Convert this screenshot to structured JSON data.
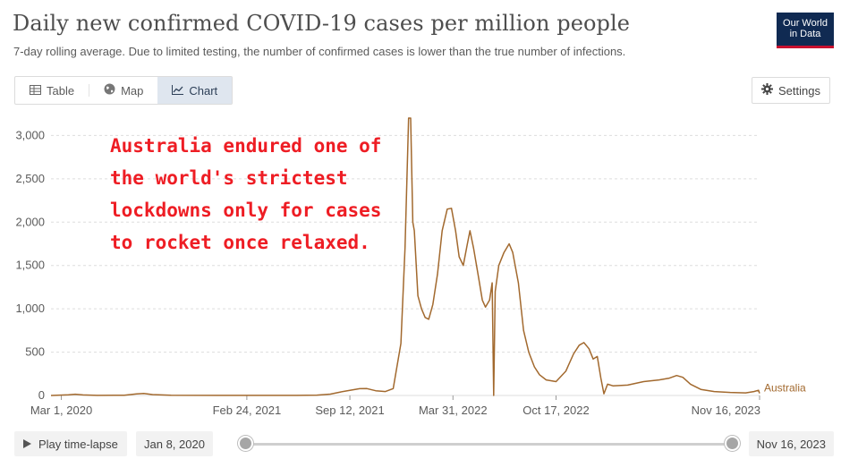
{
  "header": {
    "title": "Daily new confirmed COVID-19 cases per million people",
    "subtitle": "7-day rolling average. Due to limited testing, the number of confirmed cases is lower than the true number of infections.",
    "logo_line1": "Our World",
    "logo_line2": "in Data"
  },
  "tabs": [
    {
      "label": "Table",
      "icon": "table-icon",
      "active": false
    },
    {
      "label": "Map",
      "icon": "globe-icon",
      "active": false
    },
    {
      "label": "Chart",
      "icon": "line-chart-icon",
      "active": true
    }
  ],
  "settings_label": "Settings",
  "annotation": {
    "lines": [
      "Australia endured one of",
      "the world's strictest",
      "lockdowns only for cases",
      "to rocket once relaxed."
    ],
    "color": "#ee1d24"
  },
  "timeline": {
    "play_label": "Play time-lapse",
    "start_date": "Jan 8, 2020",
    "end_date": "Nov 16, 2023"
  },
  "colors": {
    "series": "#a2692e",
    "grid": "#dddddd",
    "accent_tab": "#dfe6ef",
    "logo_bg": "#102a52",
    "logo_accent": "#c8102e"
  },
  "chart_data": {
    "type": "line",
    "title": "Daily new confirmed COVID-19 cases per million people",
    "xlabel": "",
    "ylabel": "",
    "ylim": [
      0,
      3200
    ],
    "yticks": [
      0,
      500,
      1000,
      1500,
      2000,
      2500,
      3000
    ],
    "ytick_labels": [
      "0",
      "500",
      "1,000",
      "1,500",
      "2,000",
      "2,500",
      "3,000"
    ],
    "xticks": [
      "2020-03-01",
      "2021-02-24",
      "2021-09-12",
      "2022-03-31",
      "2022-10-17",
      "2023-11-16"
    ],
    "xtick_labels": [
      "Mar 1, 2020",
      "Feb 24, 2021",
      "Sep 12, 2021",
      "Mar 31, 2022",
      "Oct 17, 2022",
      "Nov 16, 2023"
    ],
    "xlim": [
      "2020-02-10",
      "2023-11-16"
    ],
    "grid": true,
    "series": [
      {
        "name": "Australia",
        "color": "#a2692e",
        "points": [
          [
            "2020-02-10",
            0
          ],
          [
            "2020-03-15",
            8
          ],
          [
            "2020-03-28",
            14
          ],
          [
            "2020-04-12",
            6
          ],
          [
            "2020-05-10",
            1
          ],
          [
            "2020-07-01",
            3
          ],
          [
            "2020-07-25",
            18
          ],
          [
            "2020-08-08",
            24
          ],
          [
            "2020-08-25",
            10
          ],
          [
            "2020-09-30",
            2
          ],
          [
            "2020-12-31",
            1
          ],
          [
            "2021-06-01",
            1
          ],
          [
            "2021-07-10",
            4
          ],
          [
            "2021-08-05",
            15
          ],
          [
            "2021-08-25",
            40
          ],
          [
            "2021-09-12",
            60
          ],
          [
            "2021-10-01",
            78
          ],
          [
            "2021-10-15",
            80
          ],
          [
            "2021-11-01",
            55
          ],
          [
            "2021-11-20",
            45
          ],
          [
            "2021-12-05",
            80
          ],
          [
            "2021-12-20",
            600
          ],
          [
            "2021-12-28",
            1700
          ],
          [
            "2022-01-04",
            3200
          ],
          [
            "2022-01-08",
            3200
          ],
          [
            "2022-01-12",
            2000
          ],
          [
            "2022-01-15",
            1900
          ],
          [
            "2022-01-22",
            1150
          ],
          [
            "2022-01-29",
            1000
          ],
          [
            "2022-02-05",
            900
          ],
          [
            "2022-02-12",
            880
          ],
          [
            "2022-02-20",
            1050
          ],
          [
            "2022-03-01",
            1400
          ],
          [
            "2022-03-10",
            1900
          ],
          [
            "2022-03-20",
            2150
          ],
          [
            "2022-03-28",
            2160
          ],
          [
            "2022-04-05",
            1900
          ],
          [
            "2022-04-12",
            1600
          ],
          [
            "2022-04-20",
            1500
          ],
          [
            "2022-04-28",
            1750
          ],
          [
            "2022-05-03",
            1900
          ],
          [
            "2022-05-10",
            1700
          ],
          [
            "2022-05-20",
            1350
          ],
          [
            "2022-05-27",
            1100
          ],
          [
            "2022-06-02",
            1020
          ],
          [
            "2022-06-10",
            1100
          ],
          [
            "2022-06-15",
            1300
          ],
          [
            "2022-06-18",
            0
          ],
          [
            "2022-06-21",
            1200
          ],
          [
            "2022-06-28",
            1500
          ],
          [
            "2022-07-08",
            1650
          ],
          [
            "2022-07-18",
            1750
          ],
          [
            "2022-07-25",
            1650
          ],
          [
            "2022-08-05",
            1300
          ],
          [
            "2022-08-15",
            750
          ],
          [
            "2022-08-25",
            500
          ],
          [
            "2022-09-05",
            330
          ],
          [
            "2022-09-15",
            240
          ],
          [
            "2022-09-28",
            180
          ],
          [
            "2022-10-17",
            160
          ],
          [
            "2022-11-05",
            280
          ],
          [
            "2022-11-20",
            480
          ],
          [
            "2022-12-01",
            580
          ],
          [
            "2022-12-10",
            610
          ],
          [
            "2022-12-20",
            540
          ],
          [
            "2022-12-28",
            420
          ],
          [
            "2023-01-05",
            450
          ],
          [
            "2023-01-12",
            200
          ],
          [
            "2023-01-18",
            20
          ],
          [
            "2023-01-25",
            130
          ],
          [
            "2023-02-05",
            110
          ],
          [
            "2023-03-05",
            120
          ],
          [
            "2023-04-05",
            160
          ],
          [
            "2023-05-05",
            180
          ],
          [
            "2023-05-25",
            200
          ],
          [
            "2023-06-08",
            230
          ],
          [
            "2023-06-20",
            210
          ],
          [
            "2023-07-05",
            130
          ],
          [
            "2023-07-25",
            70
          ],
          [
            "2023-08-20",
            45
          ],
          [
            "2023-09-20",
            35
          ],
          [
            "2023-10-20",
            30
          ],
          [
            "2023-11-05",
            45
          ],
          [
            "2023-11-14",
            60
          ],
          [
            "2023-11-16",
            25
          ]
        ]
      }
    ]
  }
}
